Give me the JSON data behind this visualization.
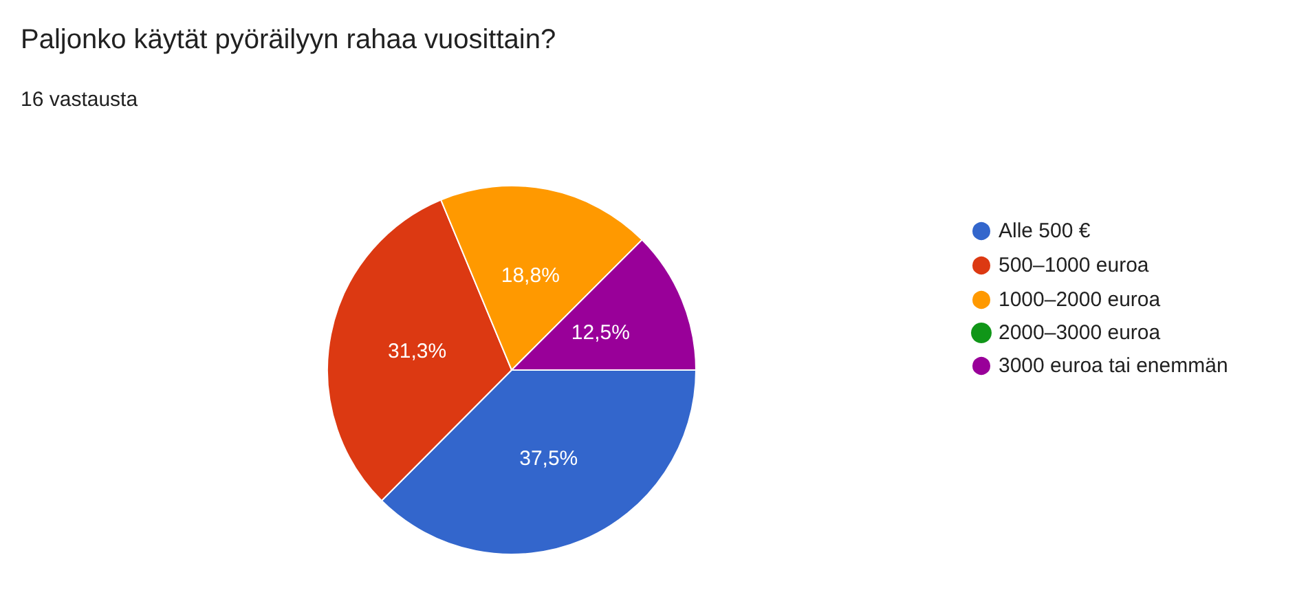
{
  "chart_data": {
    "type": "pie",
    "title": "Paljonko käytät pyöräilyyn rahaa vuosittain?",
    "subtitle": "16 vastausta",
    "categories": [
      "Alle 500 €",
      "500–1000 euroa",
      "1000–2000 euroa",
      "2000–3000 euroa",
      "3000 euroa tai enemmän"
    ],
    "values": [
      37.5,
      31.3,
      18.8,
      0,
      12.5
    ],
    "colors": [
      "#3366cc",
      "#dc3912",
      "#ff9900",
      "#109618",
      "#990099"
    ],
    "value_labels": [
      "37,5%",
      "31,3%",
      "18,8%",
      null,
      "12,5%"
    ],
    "legend": "right"
  }
}
